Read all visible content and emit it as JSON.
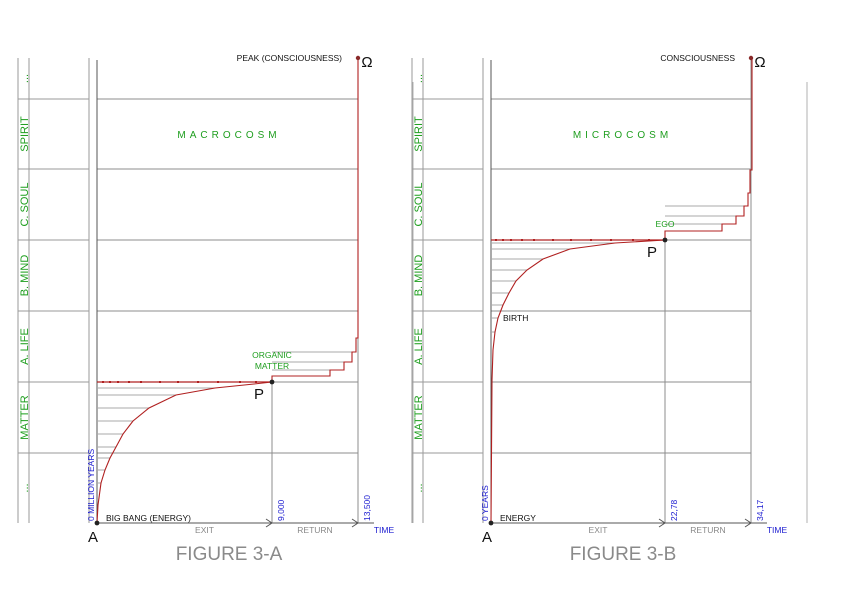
{
  "figure_a": {
    "caption": "FIGURE 3-A",
    "region_title": "MACROCOSM",
    "levels": [
      "SPIRIT",
      "C. SOUL",
      "B. MIND",
      "A. LIFE",
      "MATTER"
    ],
    "ellipsis": "...",
    "peak_label": "PEAK (CONSCIOUSNESS)",
    "omega": "Ω",
    "origin": "A",
    "point": "P",
    "point_label": [
      "ORGANIC",
      "MATTER"
    ],
    "start_label": "BIG BANG (ENERGY)",
    "exit_label": "EXIT",
    "return_label": "RETURN",
    "time_label": "TIME",
    "tick_zero": "0 MILLION YEARS",
    "tick_mid": "9,000",
    "tick_end": "13,500"
  },
  "figure_b": {
    "caption": "FIGURE 3-B",
    "region_title": "MICROCOSM",
    "levels": [
      "SPIRIT",
      "C. SOUL",
      "B. MIND",
      "A. LIFE",
      "MATTER"
    ],
    "ellipsis": "...",
    "peak_label": "CONSCIOUSNESS",
    "omega": "Ω",
    "origin": "A",
    "point": "P",
    "point_label": [
      "EGO"
    ],
    "birth_label": "BIRTH",
    "start_label": "ENERGY",
    "exit_label": "EXIT",
    "return_label": "RETURN",
    "time_label": "TIME",
    "tick_zero": "0 YEARS",
    "tick_mid": "22,78",
    "tick_end": "34,17"
  },
  "colors": {
    "curve": "#b02020",
    "level_text": "#1e9e1e",
    "axis_text": "#1a1ad0",
    "grid": "#8c8c8c",
    "caption": "#8a8a8a"
  }
}
